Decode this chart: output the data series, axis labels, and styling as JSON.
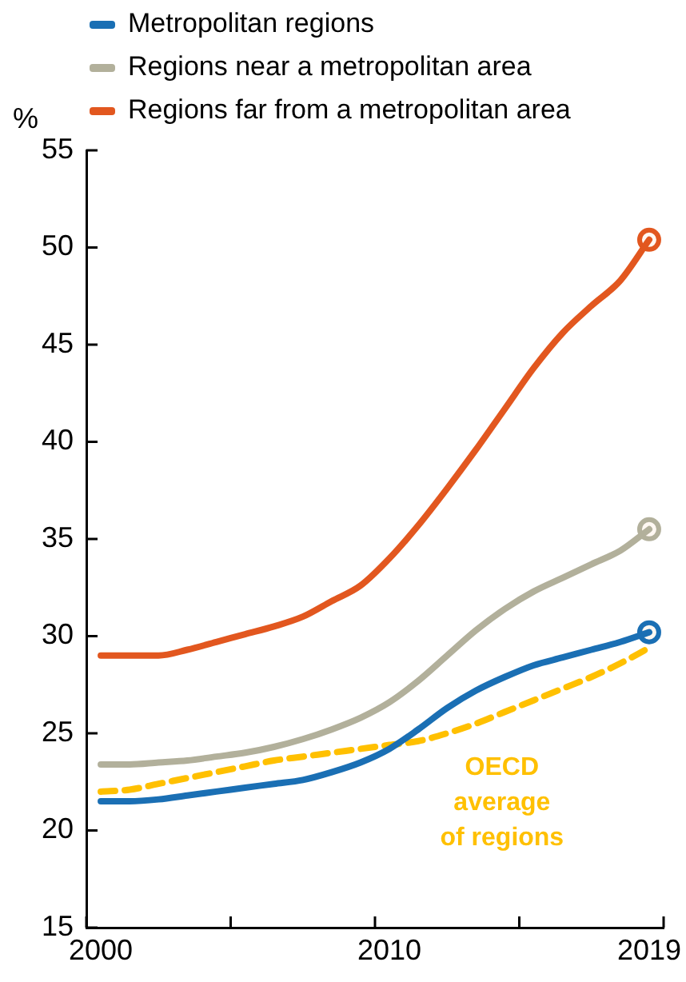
{
  "chart_data": {
    "type": "line",
    "ylabel": "%",
    "legend": "top",
    "grid": false,
    "x": [
      2000,
      2001,
      2002,
      2003,
      2004,
      2005,
      2006,
      2007,
      2008,
      2009,
      2010,
      2011,
      2012,
      2013,
      2014,
      2015,
      2016,
      2017,
      2018,
      2019
    ],
    "xlim": [
      1999.5,
      2019.5
    ],
    "xticks": [
      {
        "value": 1999.5,
        "label": null
      },
      2000,
      {
        "value": 2004.5,
        "label": null
      },
      {
        "value": 2009.5,
        "label": null
      },
      2010,
      {
        "value": 2014.5,
        "label": null
      },
      2019,
      {
        "value": 2019.5,
        "label": null
      }
    ],
    "ylim": [
      15,
      55
    ],
    "yticks": [
      15,
      20,
      25,
      30,
      35,
      40,
      45,
      50,
      55
    ],
    "series": [
      {
        "name": "Metropolitan regions",
        "color": "#1a6fb4",
        "values": [
          21.5,
          21.5,
          21.6,
          21.8,
          22.0,
          22.2,
          22.4,
          22.6,
          23.0,
          23.5,
          24.2,
          25.2,
          26.3,
          27.2,
          27.9,
          28.5,
          28.9,
          29.3,
          29.7,
          30.2
        ]
      },
      {
        "name": "Regions near a metropolitan area",
        "color": "#b2b09b",
        "values": [
          23.4,
          23.4,
          23.5,
          23.6,
          23.8,
          24.0,
          24.3,
          24.7,
          25.2,
          25.8,
          26.6,
          27.7,
          29.0,
          30.3,
          31.4,
          32.3,
          33.0,
          33.7,
          34.4,
          35.5
        ]
      },
      {
        "name": "Regions far from a metropolitan area",
        "color": "#e2571f",
        "values": [
          29.0,
          29.0,
          29.0,
          29.3,
          29.7,
          30.1,
          30.5,
          31.0,
          31.8,
          32.6,
          34.0,
          35.7,
          37.6,
          39.6,
          41.7,
          43.8,
          45.6,
          47.0,
          48.3,
          50.4
        ]
      },
      {
        "color": "#ffc000",
        "marker": "none",
        "line_style": "dashed",
        "values": [
          22.0,
          22.1,
          22.4,
          22.7,
          23.0,
          23.3,
          23.6,
          23.8,
          24.0,
          24.2,
          24.4,
          24.6,
          25.0,
          25.5,
          26.1,
          26.7,
          27.3,
          27.9,
          28.6,
          29.4
        ]
      },
      {
        "type": "scatter",
        "color": "#1a6fb4",
        "marker": "circle",
        "values": [
          null,
          null,
          null,
          null,
          null,
          null,
          null,
          null,
          null,
          null,
          null,
          null,
          null,
          null,
          null,
          null,
          null,
          null,
          null,
          30.2
        ]
      },
      {
        "type": "scatter",
        "color": "#b2b09b",
        "marker": "circle",
        "values": [
          null,
          null,
          null,
          null,
          null,
          null,
          null,
          null,
          null,
          null,
          null,
          null,
          null,
          null,
          null,
          null,
          null,
          null,
          null,
          35.5
        ]
      },
      {
        "type": "scatter",
        "color": "#e2571f",
        "marker": "circle",
        "values": [
          null,
          null,
          null,
          null,
          null,
          null,
          null,
          null,
          null,
          null,
          null,
          null,
          null,
          null,
          null,
          null,
          null,
          null,
          null,
          50.4
        ]
      }
    ],
    "annotations": [
      "OECD average of regions"
    ]
  }
}
